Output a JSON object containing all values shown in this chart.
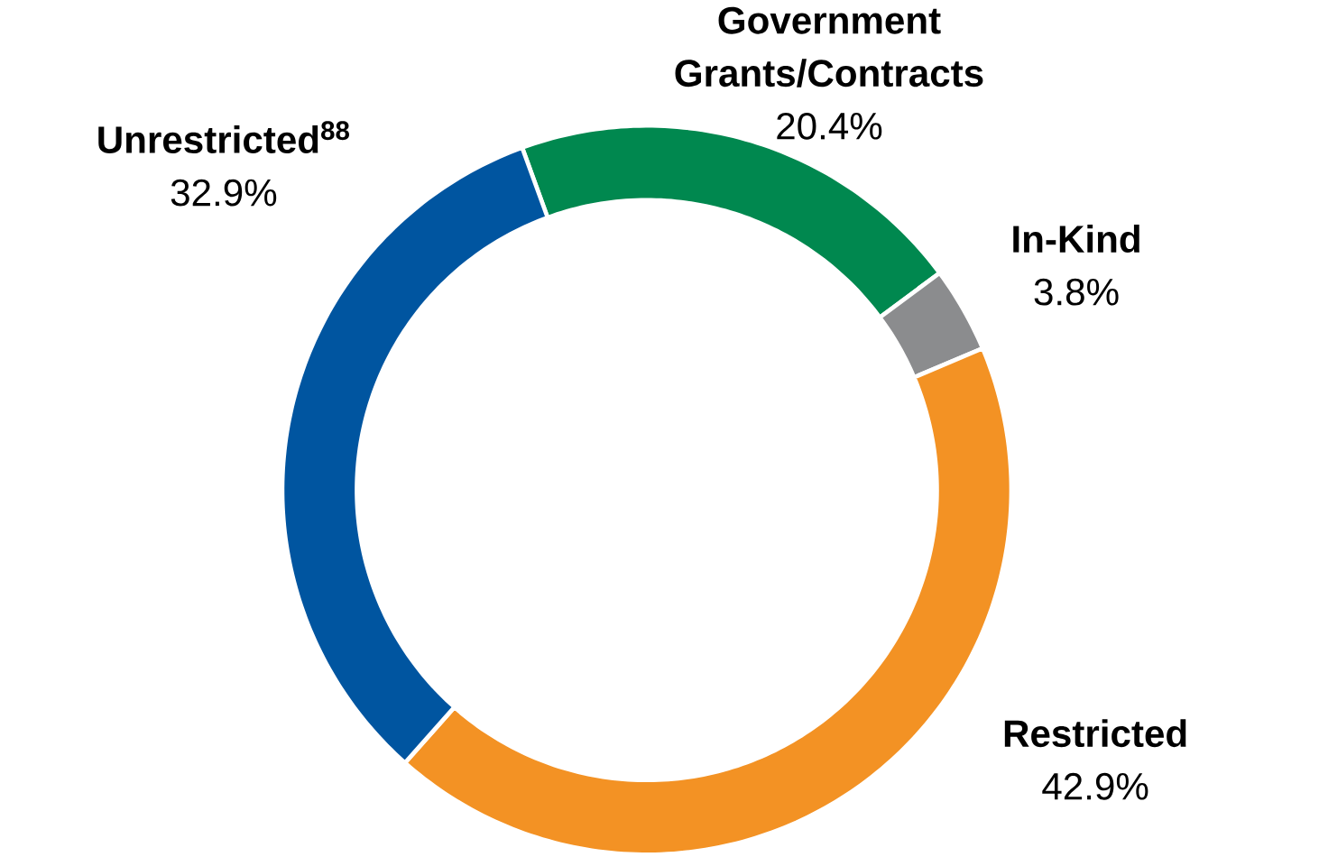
{
  "chart_data": {
    "type": "donut",
    "categories": [
      "Government Grants/Contracts",
      "In-Kind",
      "Restricted",
      "Unrestricted$^{88}$"
    ],
    "values": [
      20.4,
      3.8,
      42.9,
      32.9
    ],
    "value_labels": [
      "20.4%",
      "3.8%",
      "42.9%",
      "32.9%"
    ],
    "colors": [
      "#00884f",
      "#8b8c8e",
      "#f39224",
      "#0055a0"
    ]
  }
}
